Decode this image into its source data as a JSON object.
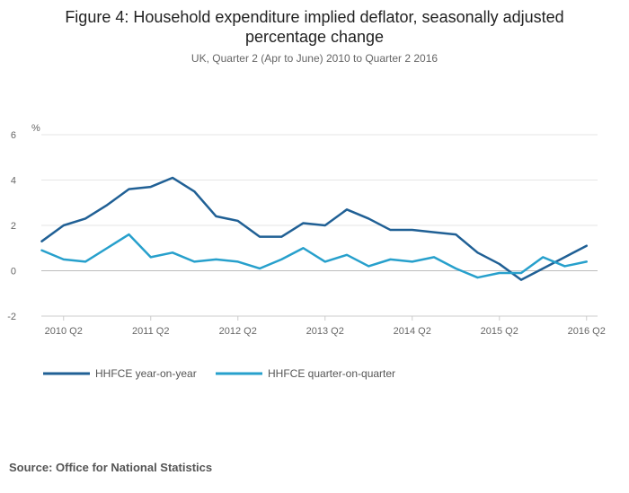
{
  "header": {
    "title_line1": "Figure 4: Household expenditure implied deflator, seasonally adjusted",
    "title_line2": "percentage change",
    "subtitle": "UK, Quarter 2 (Apr to June) 2010 to Quarter 2 2016"
  },
  "footer": {
    "source": "Source: Office for National Statistics"
  },
  "chart_data": {
    "type": "line",
    "title": "Figure 4: Household expenditure implied deflator, seasonally adjusted percentage change",
    "subtitle": "UK, Quarter 2 (Apr to June) 2010 to Quarter 2 2016",
    "ylabel": "%",
    "xlabel": "",
    "ylim": [
      -2,
      6
    ],
    "yticks": [
      -2,
      0,
      2,
      4,
      6
    ],
    "grid": true,
    "legend_position": "bottom-left",
    "x": [
      "2010 Q1",
      "2010 Q2",
      "2010 Q3",
      "2010 Q4",
      "2011 Q1",
      "2011 Q2",
      "2011 Q3",
      "2011 Q4",
      "2012 Q1",
      "2012 Q2",
      "2012 Q3",
      "2012 Q4",
      "2013 Q1",
      "2013 Q2",
      "2013 Q3",
      "2013 Q4",
      "2014 Q1",
      "2014 Q2",
      "2014 Q3",
      "2014 Q4",
      "2015 Q1",
      "2015 Q2",
      "2015 Q3",
      "2015 Q4",
      "2016 Q1",
      "2016 Q2"
    ],
    "xtick_labels": [
      "2010 Q2",
      "2011 Q2",
      "2012 Q2",
      "2013 Q2",
      "2014 Q2",
      "2015 Q2",
      "2016 Q2"
    ],
    "series": [
      {
        "name": "HHFCE year-on-year",
        "color": "#206095",
        "values": [
          1.3,
          2.0,
          2.3,
          2.9,
          3.6,
          3.7,
          4.1,
          3.5,
          2.4,
          2.2,
          1.5,
          1.5,
          2.1,
          2.0,
          2.7,
          2.3,
          1.8,
          1.8,
          1.7,
          1.6,
          0.8,
          0.3,
          -0.4,
          0.1,
          0.6,
          1.1
        ]
      },
      {
        "name": "HHFCE quarter-on-quarter",
        "color": "#27A0CC",
        "values": [
          0.9,
          0.5,
          0.4,
          1.0,
          1.6,
          0.6,
          0.8,
          0.4,
          0.5,
          0.4,
          0.1,
          0.5,
          1.0,
          0.4,
          0.7,
          0.2,
          0.5,
          0.4,
          0.6,
          0.1,
          -0.3,
          -0.1,
          -0.1,
          0.6,
          0.2,
          0.4
        ]
      }
    ]
  }
}
